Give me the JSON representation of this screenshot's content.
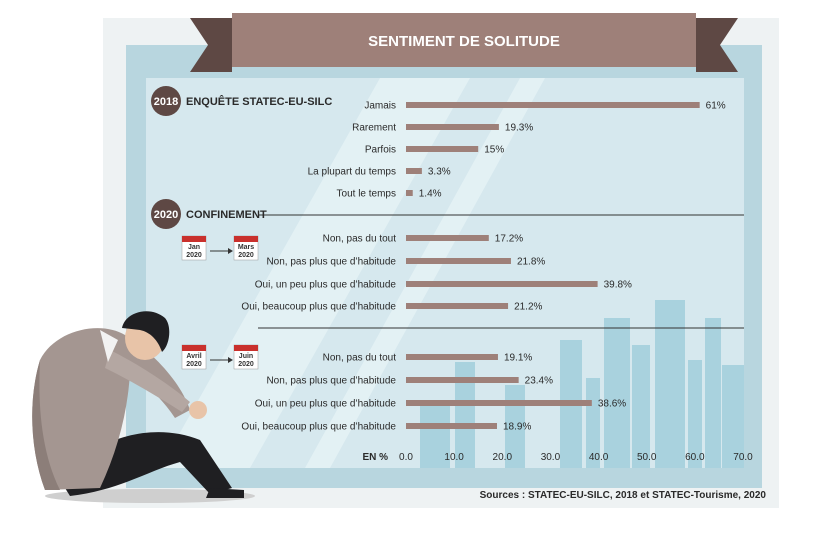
{
  "title": "SENTIMENT DE SOLITUDE",
  "source": "Sources : STATEC-EU-SILC, 2018 et STATEC-Tourisme, 2020",
  "colors": {
    "bar": "#9e8079",
    "banner": "#9e8079",
    "banner_dark": "#5e4844",
    "panel": "#d6e8ee",
    "frame": "#b8d6df",
    "skyline": "#a9d2de"
  },
  "chart_data": {
    "type": "bar",
    "orientation": "horizontal",
    "xlabel": "EN %",
    "xlim": [
      0,
      70
    ],
    "xticks": [
      "0.0",
      "10.0",
      "20.0",
      "30.0",
      "40.0",
      "50.0",
      "60.0",
      "70.0"
    ],
    "groups": [
      {
        "year": "2018",
        "title": "ENQUÊTE STATEC-EU-SILC",
        "categories": [
          "Jamais",
          "Rarement",
          "Parfois",
          "La plupart du temps",
          "Tout le temps"
        ],
        "values": [
          61,
          19.3,
          15,
          3.3,
          1.4
        ],
        "labels": [
          "61%",
          "19.3%",
          "15%",
          "3.3%",
          "1.4%"
        ]
      },
      {
        "year": "2020",
        "title": "CONFINEMENT",
        "period": {
          "from_month": "Jan",
          "from_year": "2020",
          "to_month": "Mars",
          "to_year": "2020"
        },
        "categories": [
          "Non, pas du tout",
          "Non, pas plus que d’habitude",
          "Oui, un peu plus que d’habitude",
          "Oui, beaucoup plus que d’habitude"
        ],
        "values": [
          17.2,
          21.8,
          39.8,
          21.2
        ],
        "labels": [
          "17.2%",
          "21.8%",
          "39.8%",
          "21.2%"
        ]
      },
      {
        "period": {
          "from_month": "Avril",
          "from_year": "2020",
          "to_month": "Juin",
          "to_year": "2020"
        },
        "categories": [
          "Non, pas du tout",
          "Non, pas plus que d’habitude",
          "Oui, un peu plus que d’habitude",
          "Oui, beaucoup plus que d’habitude"
        ],
        "values": [
          19.1,
          23.4,
          38.6,
          18.9
        ],
        "labels": [
          "19.1%",
          "23.4%",
          "38.6%",
          "18.9%"
        ]
      }
    ]
  }
}
